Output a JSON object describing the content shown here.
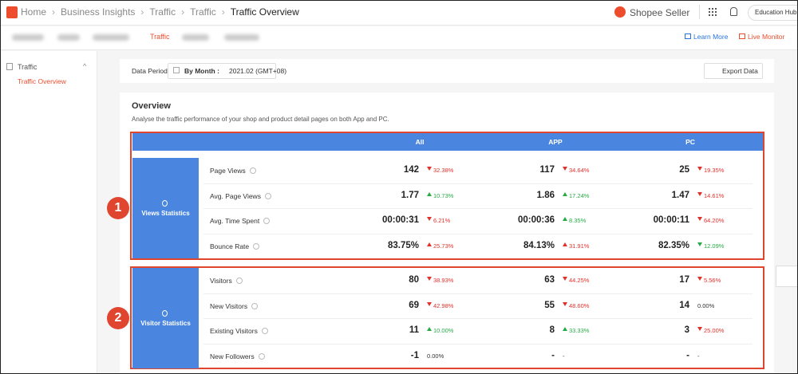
{
  "header": {
    "breadcrumb": [
      "Home",
      "Business Insights",
      "Traffic",
      "Traffic",
      "Traffic Overview"
    ],
    "brand": "Shopee Seller",
    "education": "Education Hub"
  },
  "tabs": {
    "active": "Traffic",
    "learn_more": "Learn More",
    "live_monitor": "Live Monitor"
  },
  "sidebar": {
    "group": "Traffic",
    "item": "Traffic Overview"
  },
  "period": {
    "label": "Data Period",
    "mode": "By Month :",
    "value": "2021.02 (GMT+08)",
    "export": "Export Data"
  },
  "overview": {
    "title": "Overview",
    "description": "Analyse the traffic performance of your shop and product detail pages on both App and PC.",
    "columns": [
      "All",
      "APP",
      "PC"
    ],
    "sections": [
      {
        "marker": "1",
        "name": "Views Statistics",
        "rows": [
          {
            "metric": "Page Views",
            "cells": [
              {
                "v": "142",
                "c": "32.38%",
                "dir": "down",
                "tone": "red"
              },
              {
                "v": "117",
                "c": "34.64%",
                "dir": "down",
                "tone": "red"
              },
              {
                "v": "25",
                "c": "19.35%",
                "dir": "down",
                "tone": "red"
              }
            ]
          },
          {
            "metric": "Avg. Page Views",
            "cells": [
              {
                "v": "1.77",
                "c": "10.73%",
                "dir": "up",
                "tone": "green"
              },
              {
                "v": "1.86",
                "c": "17.24%",
                "dir": "up",
                "tone": "green"
              },
              {
                "v": "1.47",
                "c": "14.61%",
                "dir": "down",
                "tone": "red"
              }
            ]
          },
          {
            "metric": "Avg. Time Spent",
            "cells": [
              {
                "v": "00:00:31",
                "c": "6.21%",
                "dir": "down",
                "tone": "red"
              },
              {
                "v": "00:00:36",
                "c": "8.35%",
                "dir": "up",
                "tone": "green"
              },
              {
                "v": "00:00:11",
                "c": "64.20%",
                "dir": "down",
                "tone": "red"
              }
            ]
          },
          {
            "metric": "Bounce Rate",
            "cells": [
              {
                "v": "83.75%",
                "c": "25.73%",
                "dir": "up",
                "tone": "red"
              },
              {
                "v": "84.13%",
                "c": "31.91%",
                "dir": "up",
                "tone": "red"
              },
              {
                "v": "82.35%",
                "c": "12.09%",
                "dir": "down",
                "tone": "green"
              }
            ]
          }
        ]
      },
      {
        "marker": "2",
        "name": "Visitor Statistics",
        "rows": [
          {
            "metric": "Visitors",
            "cells": [
              {
                "v": "80",
                "c": "38.93%",
                "dir": "down",
                "tone": "red"
              },
              {
                "v": "63",
                "c": "44.25%",
                "dir": "down",
                "tone": "red"
              },
              {
                "v": "17",
                "c": "5.56%",
                "dir": "down",
                "tone": "red"
              }
            ]
          },
          {
            "metric": "New Visitors",
            "cells": [
              {
                "v": "69",
                "c": "42.98%",
                "dir": "down",
                "tone": "red"
              },
              {
                "v": "55",
                "c": "48.60%",
                "dir": "down",
                "tone": "red"
              },
              {
                "v": "14",
                "c": "0.00%"
              }
            ]
          },
          {
            "metric": "Existing Visitors",
            "cells": [
              {
                "v": "11",
                "c": "10.00%",
                "dir": "up",
                "tone": "green"
              },
              {
                "v": "8",
                "c": "33.33%",
                "dir": "up",
                "tone": "green"
              },
              {
                "v": "3",
                "c": "25.00%",
                "dir": "down",
                "tone": "red"
              }
            ]
          },
          {
            "metric": "New Followers",
            "cells": [
              {
                "v": "-1",
                "c": "0.00%"
              },
              {
                "v": "-",
                "c": "-"
              },
              {
                "v": "-",
                "c": "-"
              }
            ]
          }
        ]
      }
    ]
  }
}
